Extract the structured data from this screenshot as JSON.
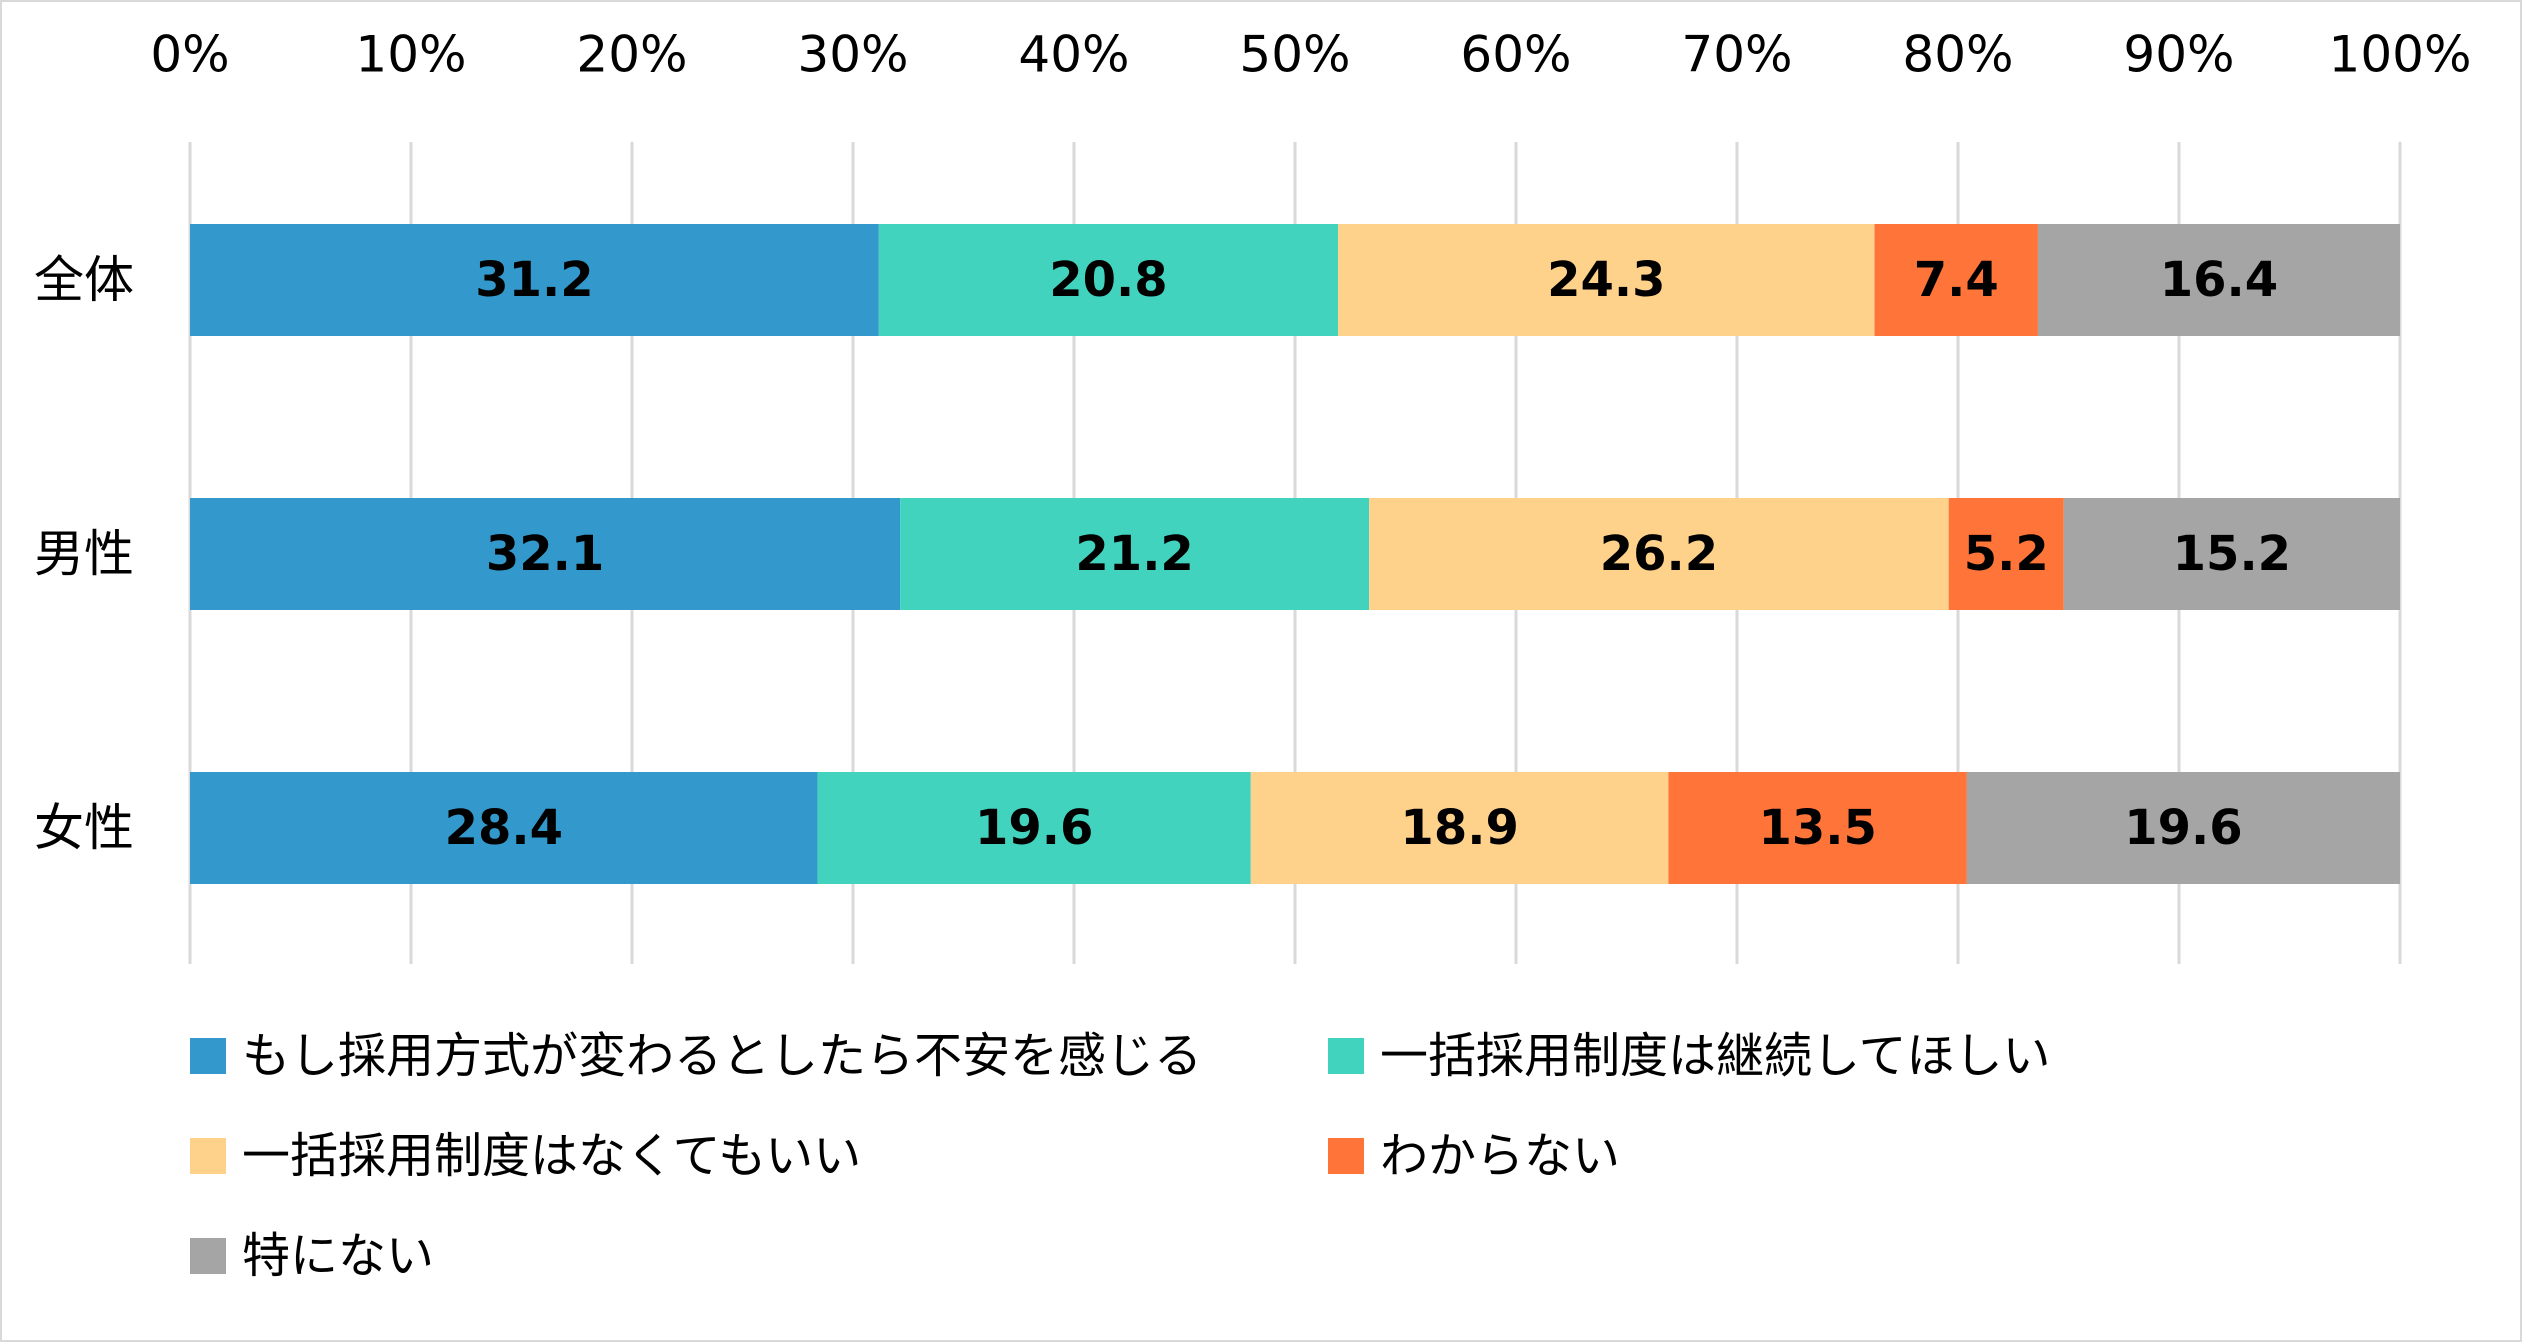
{
  "chart_data": {
    "type": "bar",
    "orientation": "horizontal",
    "stacked": true,
    "percent_stacked": true,
    "categories": [
      "全体",
      "男性",
      "女性"
    ],
    "series": [
      {
        "name": "もし採用方式が変わるとしたら不安を感じる",
        "color": "#3399cc",
        "values": [
          31.2,
          32.1,
          28.4
        ]
      },
      {
        "name": "一括採用制度は継続してほしい",
        "color": "#42d3bf",
        "values": [
          20.8,
          21.2,
          19.6
        ]
      },
      {
        "name": "一括採用制度はなくてもいい",
        "color": "#ffd28b",
        "values": [
          24.3,
          26.2,
          18.9
        ]
      },
      {
        "name": "わからない",
        "color": "#ff7438",
        "values": [
          7.4,
          5.2,
          13.5
        ]
      },
      {
        "name": "特にない",
        "color": "#a5a5a5",
        "values": [
          16.4,
          15.2,
          19.6
        ]
      }
    ],
    "x_ticks": [
      "0%",
      "10%",
      "20%",
      "30%",
      "40%",
      "50%",
      "60%",
      "70%",
      "80%",
      "90%",
      "100%"
    ],
    "xlim": [
      0,
      100
    ],
    "x_axis_position": "top",
    "grid": "vertical",
    "legend_position": "bottom",
    "data_labels": true
  }
}
